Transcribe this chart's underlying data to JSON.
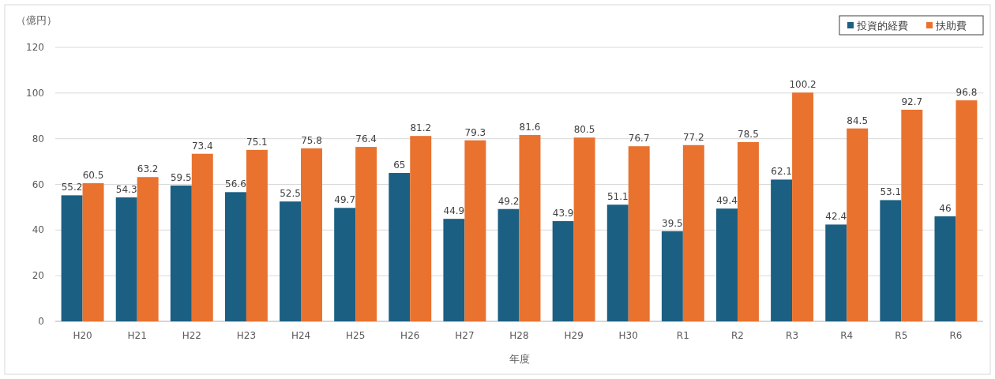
{
  "chart_data": {
    "type": "bar",
    "ylabel": "（億円）",
    "xlabel": "年度",
    "categories": [
      "H20",
      "H21",
      "H22",
      "H23",
      "H24",
      "H25",
      "H26",
      "H27",
      "H28",
      "H29",
      "H30",
      "R1",
      "R2",
      "R3",
      "R4",
      "R5",
      "R6"
    ],
    "series": [
      {
        "name": "投資的経費",
        "color": "#1b5f82",
        "values": [
          55.2,
          54.3,
          59.5,
          56.6,
          52.5,
          49.7,
          65,
          44.9,
          49.2,
          43.9,
          51.1,
          39.5,
          49.4,
          62.1,
          42.4,
          53.1,
          46
        ]
      },
      {
        "name": "扶助費",
        "color": "#e8722e",
        "values": [
          60.5,
          63.2,
          73.4,
          75.1,
          75.8,
          76.4,
          81.2,
          79.3,
          81.6,
          80.5,
          76.7,
          77.2,
          78.5,
          100.2,
          84.5,
          92.7,
          96.8
        ]
      }
    ],
    "ylim": [
      0,
      120
    ],
    "yticks": [
      0,
      20,
      40,
      60,
      80,
      100,
      120
    ],
    "grid": "y",
    "legend": "top right",
    "data_labels": true
  }
}
